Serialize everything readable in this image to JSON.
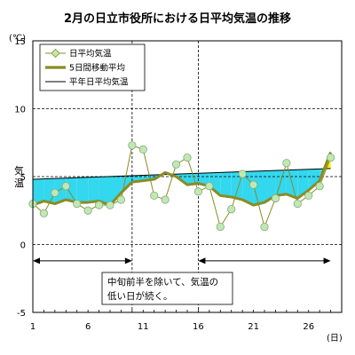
{
  "chart_data": {
    "type": "line",
    "title": "2月の日立市役所における日平均気温の推移",
    "ylabel": "気温",
    "yunit": "(℃)",
    "xunit": "(日)",
    "ylim": [
      -5,
      15
    ],
    "yticks": [
      "15",
      "10",
      "5",
      "0",
      "-5"
    ],
    "ytick_values": [
      15,
      10,
      5,
      0,
      -5
    ],
    "xlim": [
      1,
      29
    ],
    "xticks": [
      "1",
      "6",
      "11",
      "16",
      "21",
      "26"
    ],
    "xtick_values": [
      1,
      6,
      11,
      16,
      21,
      26
    ],
    "grid": "horizontal dashed at 10, 5, 0",
    "legend_position": "top-left",
    "series": [
      {
        "name": "日平均気温",
        "color": "#8b8b22",
        "marker_fill": "#bfe9b0",
        "x": [
          1,
          2,
          3,
          4,
          5,
          6,
          7,
          8,
          9,
          10,
          11,
          12,
          13,
          14,
          15,
          16,
          17,
          18,
          19,
          20,
          21,
          22,
          23,
          24,
          25,
          26,
          27,
          28
        ],
        "values": [
          3.0,
          2.3,
          3.8,
          4.3,
          3.0,
          2.5,
          2.9,
          2.9,
          3.3,
          7.3,
          7.0,
          3.6,
          3.3,
          5.9,
          6.4,
          3.9,
          4.3,
          1.3,
          2.6,
          5.2,
          4.4,
          1.3,
          3.4,
          6.0,
          3.0,
          3.6,
          4.3,
          6.4
        ]
      },
      {
        "name": "5日間移動平均",
        "color": "#8b8b22",
        "x": [
          1,
          2,
          3,
          4,
          5,
          6,
          7,
          8,
          9,
          10,
          11,
          12,
          13,
          14,
          15,
          16,
          17,
          18,
          19,
          20,
          21,
          22,
          23,
          24,
          25,
          26,
          27,
          28
        ],
        "values": [
          2.9,
          3.2,
          3.0,
          3.3,
          3.1,
          3.1,
          3.2,
          2.9,
          3.8,
          4.6,
          4.7,
          4.8,
          5.3,
          5.0,
          4.4,
          4.5,
          4.3,
          3.6,
          3.5,
          3.3,
          2.9,
          3.1,
          3.6,
          3.7,
          3.4,
          4.0,
          4.7,
          6.8
        ]
      },
      {
        "name": "平年日平均気温",
        "color": "#000000",
        "x": [
          1,
          28
        ],
        "values": [
          4.8,
          5.6
        ]
      }
    ],
    "fill_colors": {
      "below_normal": "#33d7ee",
      "above_normal": "#f2f20c"
    },
    "annotations": {
      "text_line1": "中旬前半を除いて、気温の",
      "text_line2": "低い日が続く。",
      "arrow1_x": [
        1,
        10
      ],
      "arrow2_x": [
        16,
        28
      ],
      "arrow_y": -1.2
    }
  }
}
